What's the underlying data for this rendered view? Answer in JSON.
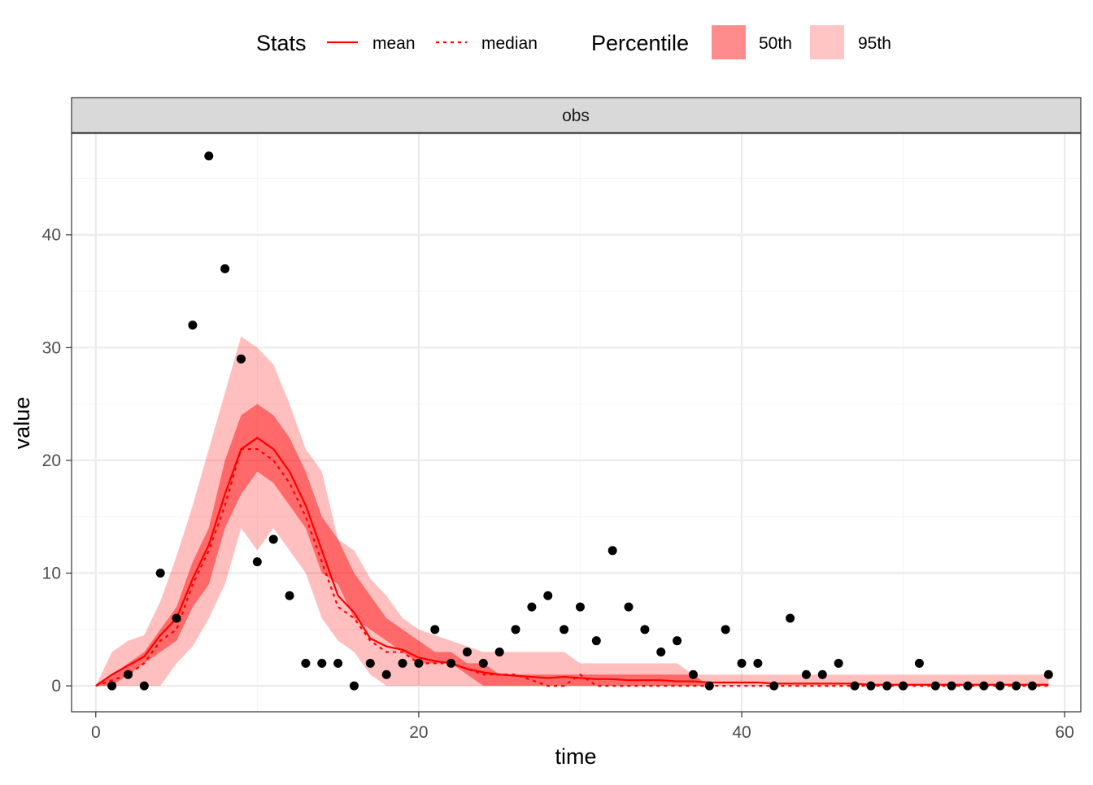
{
  "legend": {
    "stats_title": "Stats",
    "stats_items": [
      {
        "label": "mean",
        "style": "solid"
      },
      {
        "label": "median",
        "style": "dotted"
      }
    ],
    "percentile_title": "Percentile",
    "percentile_items": [
      {
        "label": "50th",
        "color": "#ff8c8c"
      },
      {
        "label": "95th",
        "color": "#ffc4c4"
      }
    ]
  },
  "colors": {
    "line": "#ff0000",
    "band50": "#ff0000",
    "band50_opacity": 0.45,
    "band95": "#ff0000",
    "band95_opacity": 0.25,
    "points": "#000000",
    "strip_bg": "#d9d9d9",
    "grid_major": "#ebebeb",
    "grid_minor": "#f5f5f5"
  },
  "chart_data": {
    "type": "line",
    "facet": "obs",
    "xlabel": "time",
    "ylabel": "value",
    "xlim": [
      -1.5,
      61
    ],
    "ylim": [
      -2.3,
      49
    ],
    "xticks": [
      0,
      20,
      40,
      60
    ],
    "yticks": [
      0,
      10,
      20,
      30,
      40
    ],
    "grid": true,
    "legend_position": "top",
    "observed": {
      "x": [
        1,
        2,
        3,
        4,
        5,
        6,
        7,
        8,
        9,
        10,
        11,
        12,
        13,
        14,
        15,
        16,
        17,
        18,
        19,
        20,
        21,
        22,
        23,
        24,
        25,
        26,
        27,
        28,
        29,
        30,
        31,
        32,
        33,
        34,
        35,
        36,
        37,
        38,
        39,
        40,
        41,
        42,
        43,
        44,
        45,
        46,
        47,
        48,
        49,
        50,
        51,
        52,
        53,
        54,
        55,
        56,
        57,
        58,
        59
      ],
      "y": [
        0,
        1,
        0,
        10,
        6,
        32,
        47,
        37,
        29,
        11,
        13,
        8,
        2,
        2,
        2,
        0,
        2,
        1,
        2,
        2,
        5,
        2,
        3,
        2,
        3,
        5,
        7,
        8,
        5,
        7,
        4,
        12,
        7,
        5,
        3,
        4,
        1,
        0,
        5,
        2,
        2,
        0,
        6,
        1,
        1,
        2,
        0,
        0,
        0,
        0,
        2,
        0,
        0,
        0,
        0,
        0,
        0,
        0,
        1
      ]
    },
    "x": [
      0,
      1,
      2,
      3,
      4,
      5,
      6,
      7,
      8,
      9,
      10,
      11,
      12,
      13,
      14,
      15,
      16,
      17,
      18,
      19,
      20,
      21,
      22,
      23,
      24,
      25,
      26,
      27,
      28,
      29,
      30,
      31,
      32,
      33,
      34,
      35,
      36,
      37,
      38,
      39,
      40,
      41,
      42,
      43,
      44,
      45,
      46,
      47,
      48,
      49,
      50,
      51,
      52,
      53,
      54,
      55,
      56,
      57,
      58,
      59
    ],
    "series": [
      {
        "name": "mean",
        "values": [
          0,
          1,
          1.8,
          2.6,
          4.5,
          6,
          9.5,
          12.5,
          17,
          21,
          22,
          21,
          19,
          16,
          12,
          8,
          6.5,
          4.2,
          3.5,
          3.2,
          2.5,
          2.2,
          2,
          1.5,
          1.2,
          1,
          0.9,
          0.8,
          0.7,
          0.8,
          0.7,
          0.6,
          0.6,
          0.5,
          0.5,
          0.5,
          0.4,
          0.4,
          0.3,
          0.3,
          0.3,
          0.3,
          0.2,
          0.2,
          0.2,
          0.2,
          0.2,
          0.2,
          0.1,
          0.1,
          0.1,
          0.1,
          0.1,
          0.1,
          0.1,
          0.1,
          0.1,
          0.1,
          0.1,
          0.1
        ]
      },
      {
        "name": "median",
        "values": [
          0,
          0.5,
          1,
          2,
          4,
          5,
          9,
          12,
          16,
          21,
          21,
          20,
          18,
          15,
          11,
          7,
          6,
          4,
          3,
          3,
          2,
          2,
          2,
          1.5,
          1,
          1,
          1,
          0.5,
          0,
          0,
          1,
          0,
          0,
          0,
          0,
          0,
          0,
          0,
          0,
          0,
          0,
          0,
          0,
          0,
          0,
          0,
          0,
          0,
          0,
          0,
          0,
          0,
          0,
          0,
          0,
          0,
          0,
          0,
          0,
          0
        ]
      }
    ],
    "bands": {
      "p50": {
        "lower": [
          0,
          0,
          1,
          2,
          3,
          4,
          7,
          9,
          14,
          17,
          19,
          18,
          16,
          14,
          10,
          9,
          6,
          5,
          4,
          3,
          2,
          2,
          2,
          1,
          0,
          0,
          0,
          0,
          0,
          0,
          0,
          0,
          0,
          0,
          0,
          0,
          0,
          0,
          0,
          0,
          0,
          0,
          0,
          0,
          0,
          0,
          0,
          0,
          0,
          0,
          0,
          0,
          0,
          0,
          0,
          0,
          0,
          0,
          0,
          0
        ],
        "upper": [
          0,
          1,
          2,
          3,
          5,
          7,
          11,
          14,
          20,
          24,
          25,
          24,
          22,
          19,
          15,
          13,
          10,
          8,
          6,
          5,
          4,
          3,
          3,
          2,
          2,
          1,
          1,
          1,
          1,
          1,
          1,
          1,
          1,
          1,
          1,
          1,
          1,
          1,
          0,
          0,
          0,
          0,
          0,
          0,
          0,
          0,
          0,
          0,
          0,
          0,
          0,
          0,
          0,
          0,
          0,
          0,
          0,
          0,
          0,
          0
        ]
      },
      "p95": {
        "lower": [
          0,
          0,
          0,
          0,
          0,
          2,
          3.5,
          6,
          9,
          14,
          12,
          14,
          12,
          10,
          6,
          4,
          3,
          1,
          0,
          0,
          0,
          0,
          0,
          0,
          0,
          0,
          0,
          0,
          0,
          0,
          0,
          0,
          0,
          0,
          0,
          0,
          0,
          0,
          0,
          0,
          0,
          0,
          0,
          0,
          0,
          0,
          0,
          0,
          0,
          0,
          0,
          0,
          0,
          0,
          0,
          0,
          0,
          0,
          0,
          0
        ],
        "upper": [
          0,
          3,
          4,
          4.5,
          7.5,
          11.5,
          16,
          21,
          26,
          31,
          30,
          28.5,
          25,
          21,
          19,
          13,
          12,
          9.5,
          8,
          6,
          5,
          4.5,
          4,
          3.5,
          3,
          3,
          3,
          3,
          3,
          3,
          2,
          2,
          2,
          2,
          2,
          2,
          2,
          1,
          1,
          1,
          1,
          1,
          1,
          1,
          1,
          1,
          1,
          1,
          1,
          1,
          1,
          1,
          1,
          1,
          1,
          1,
          1,
          1,
          1,
          1
        ]
      }
    }
  }
}
